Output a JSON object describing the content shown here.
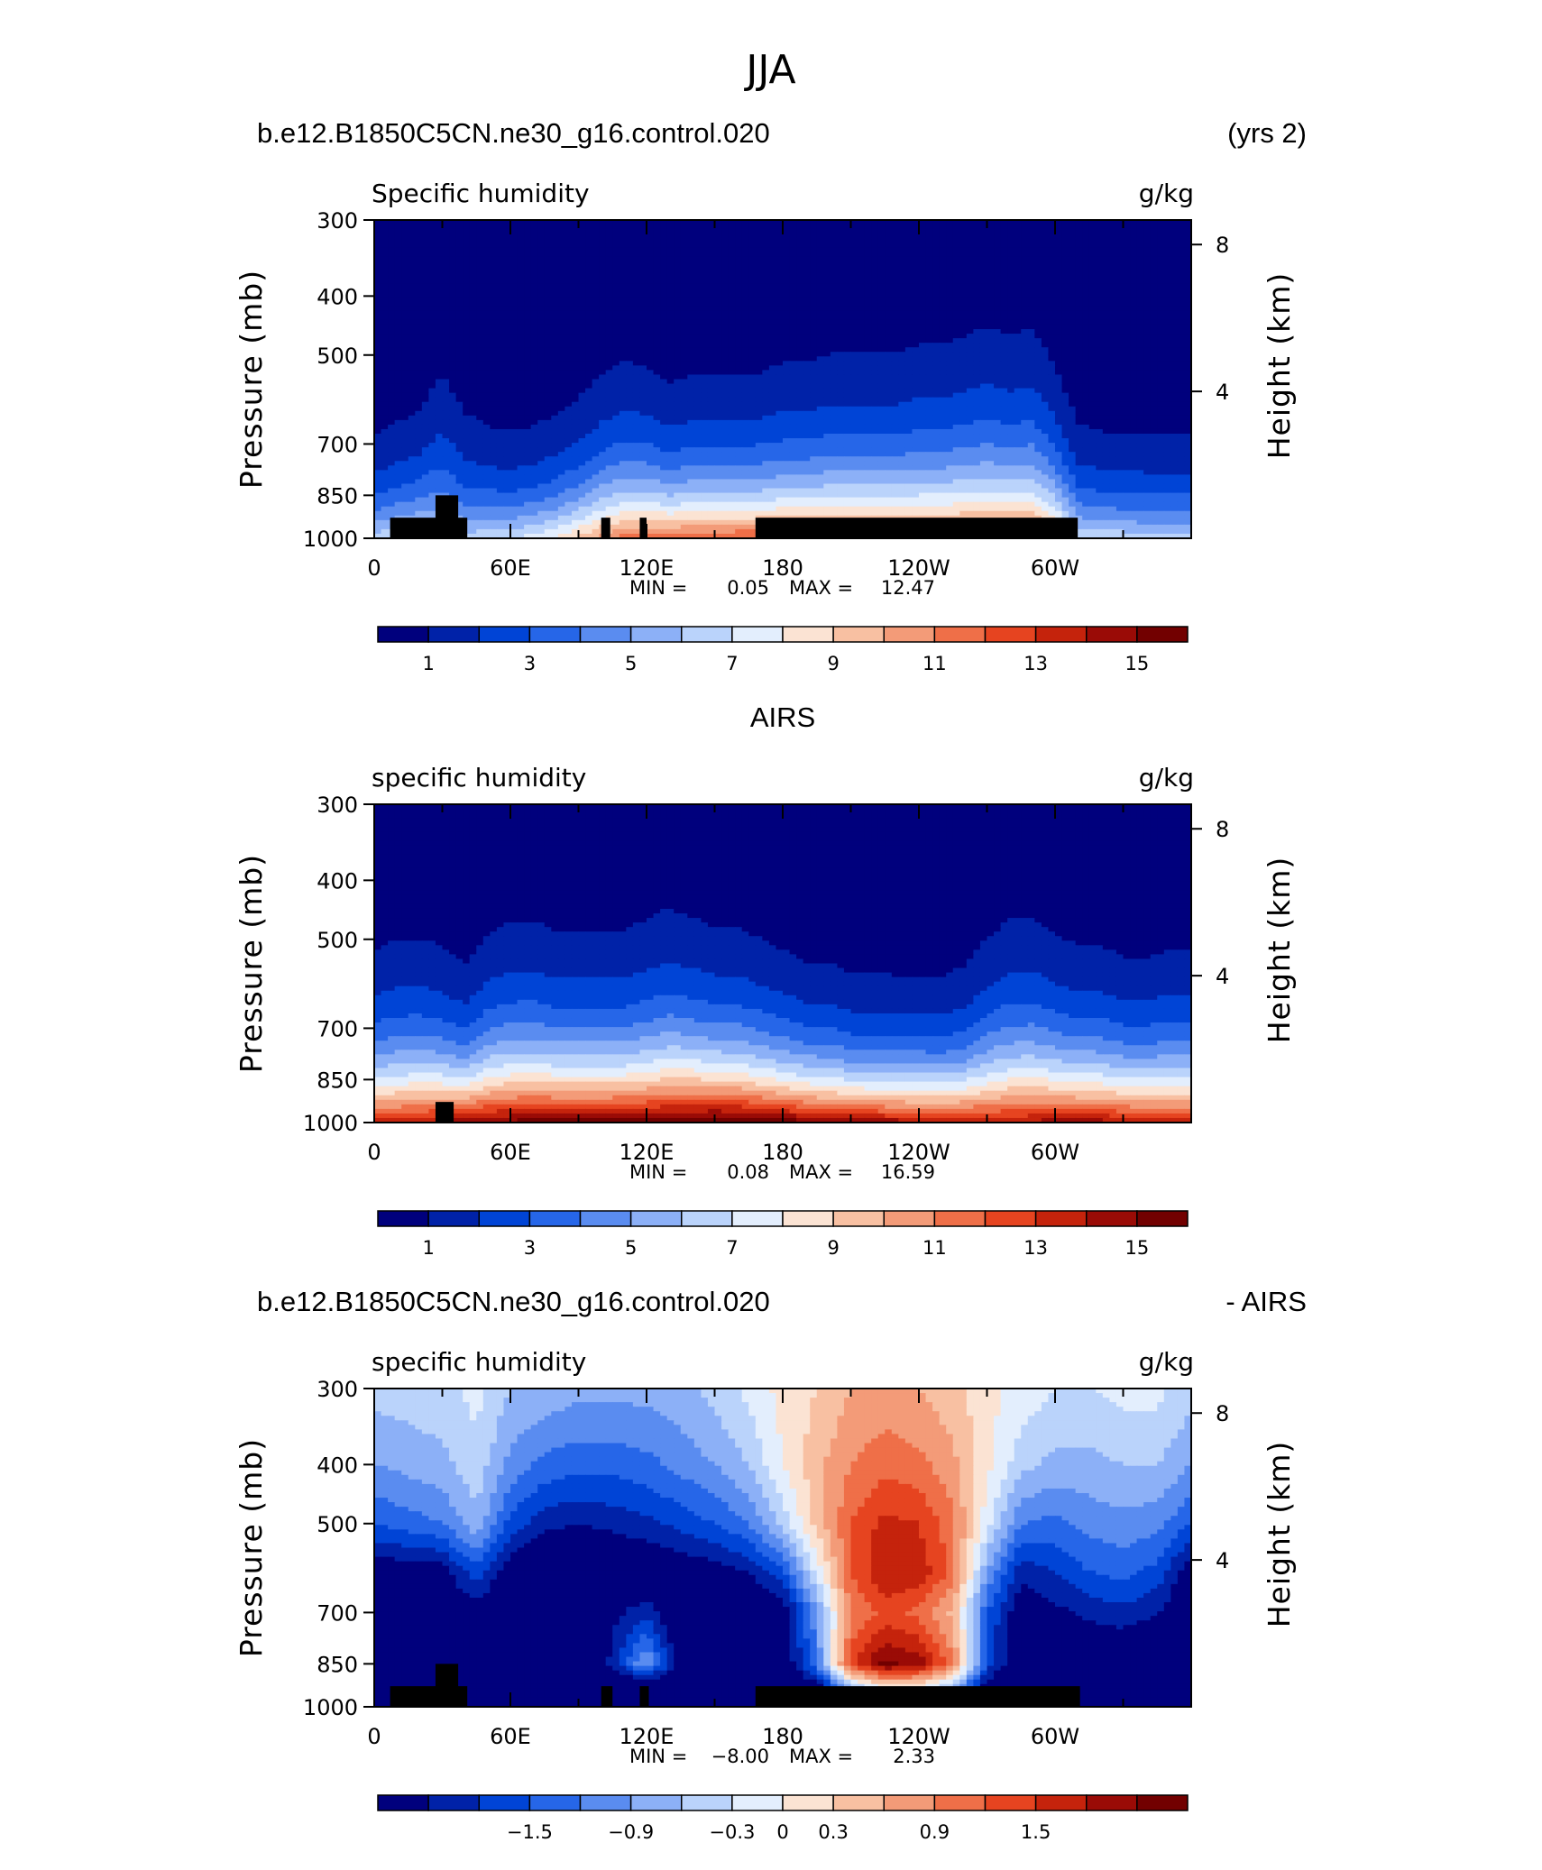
{
  "supertitle": "JJA",
  "colors": {
    "model_palette": [
      "#00007d",
      "#0022a8",
      "#0044d6",
      "#2666e8",
      "#5a8cf0",
      "#8cb0f7",
      "#bad3fb",
      "#e3eefd",
      "#fbe3d3",
      "#f8c0a2",
      "#f39b78",
      "#ef6f48",
      "#e64420",
      "#c5230c",
      "#9a0b06",
      "#720000"
    ],
    "diff_palette": [
      "#00007d",
      "#0022a8",
      "#0044d6",
      "#2666e8",
      "#5a8cf0",
      "#8cb0f7",
      "#bad3fb",
      "#e3eefd",
      "#fbe3d3",
      "#f8c0a2",
      "#f39b78",
      "#ef6f48",
      "#e64420",
      "#c5230c",
      "#9a0b06",
      "#720000"
    ],
    "topography": "#000000"
  },
  "panels": [
    {
      "left_title": "b.e12.B1850C5CN.ne30_g16.control.020",
      "right_title": "(yrs 2)",
      "center_title": "",
      "var_label": "Specific humidity",
      "units_label": "g/kg",
      "min_label": "MIN =",
      "min_value": "0.05",
      "max_label": "MAX =",
      "max_value": "12.47"
    },
    {
      "left_title": "",
      "right_title": "",
      "center_title": "AIRS",
      "var_label": "specific humidity",
      "units_label": "g/kg",
      "min_label": "MIN =",
      "min_value": "0.08",
      "max_label": "MAX =",
      "max_value": "16.59"
    },
    {
      "left_title": "b.e12.B1850C5CN.ne30_g16.control.020",
      "right_title": "- AIRS",
      "center_title": "",
      "var_label": "specific humidity",
      "units_label": "g/kg",
      "min_label": "MIN =",
      "min_value": "−8.00",
      "max_label": "MAX =",
      "max_value": "2.33"
    }
  ],
  "axes": {
    "ylabel_left": "Pressure (mb)",
    "ylabel_right": "Height (km)",
    "pressure_ticks": [
      "300",
      "400",
      "500",
      "700",
      "850",
      "1000"
    ],
    "height_ticks": [
      "8",
      "4"
    ],
    "lon_ticks": [
      "0",
      "60E",
      "120E",
      "180",
      "120W",
      "60W"
    ]
  },
  "colorbars": {
    "model_labels": [
      "1",
      "3",
      "5",
      "7",
      "9",
      "11",
      "13",
      "15"
    ],
    "diff_labels": [
      "−1.5",
      "−0.9",
      "−0.3",
      "0",
      "0.3",
      "0.9",
      "1.5"
    ]
  },
  "chart_data": [
    {
      "type": "heatmap",
      "title": "b.e12.B1850C5CN.ne30_g16.control.020",
      "xlabel": "",
      "ylabel": "Pressure (mb)",
      "x_ticks": [
        "0",
        "60E",
        "120E",
        "180",
        "120W",
        "60W"
      ],
      "xlim": [
        0,
        360
      ],
      "y_ticks": [
        300,
        400,
        500,
        700,
        850,
        1000
      ],
      "ylim": [
        1000,
        300
      ],
      "y_scale": "log",
      "levels": [
        0,
        1,
        2,
        3,
        4,
        5,
        6,
        7,
        8,
        9,
        10,
        11,
        12,
        13,
        14,
        15,
        16
      ],
      "lon": [
        0,
        10,
        20,
        30,
        40,
        50,
        60,
        70,
        80,
        90,
        100,
        110,
        120,
        130,
        140,
        150,
        160,
        170,
        180,
        190,
        200,
        210,
        220,
        230,
        240,
        250,
        260,
        270,
        280,
        290,
        300,
        310,
        320,
        330,
        340,
        350,
        360
      ],
      "surface_value": [
        6.6,
        7.2,
        7.6,
        7.0,
        6.6,
        6.8,
        7.0,
        7.6,
        8.3,
        9.4,
        10.6,
        11.4,
        11.7,
        11.9,
        12.0,
        12.1,
        12.2,
        12.3,
        12.3,
        12.3,
        12.3,
        12.3,
        12.3,
        12.3,
        12.3,
        12.3,
        12.3,
        12.3,
        12.3,
        12.1,
        10.6,
        7.2,
        7.0,
        6.8,
        6.6,
        6.6,
        6.6
      ],
      "scale_height": [
        1.5,
        1.6,
        1.7,
        2.3,
        1.8,
        1.6,
        1.5,
        1.5,
        1.6,
        1.7,
        1.9,
        2.0,
        1.9,
        1.7,
        1.8,
        1.8,
        1.8,
        1.8,
        1.9,
        1.9,
        2.0,
        2.0,
        2.0,
        2.0,
        2.1,
        2.1,
        2.2,
        2.3,
        2.2,
        2.3,
        2.0,
        1.6,
        1.5,
        1.5,
        1.5,
        1.5,
        1.5
      ],
      "min": 0.05,
      "max": 12.47
    },
    {
      "type": "heatmap",
      "title": "AIRS",
      "xlabel": "",
      "ylabel": "Pressure (mb)",
      "x_ticks": [
        "0",
        "60E",
        "120E",
        "180",
        "120W",
        "60W"
      ],
      "xlim": [
        0,
        360
      ],
      "y_ticks": [
        300,
        400,
        500,
        700,
        850,
        1000
      ],
      "ylim": [
        1000,
        300
      ],
      "y_scale": "log",
      "levels": [
        0,
        1,
        2,
        3,
        4,
        5,
        6,
        7,
        8,
        9,
        10,
        11,
        12,
        13,
        14,
        15,
        16
      ],
      "lon": [
        0,
        10,
        20,
        30,
        40,
        50,
        60,
        70,
        80,
        90,
        100,
        110,
        120,
        130,
        140,
        150,
        160,
        170,
        180,
        190,
        200,
        210,
        220,
        230,
        240,
        250,
        260,
        270,
        280,
        290,
        300,
        310,
        320,
        330,
        340,
        350,
        360
      ],
      "surface_value": [
        13.6,
        13.8,
        14.0,
        14.4,
        14.8,
        15.2,
        15.4,
        15.6,
        15.7,
        15.7,
        15.7,
        15.8,
        15.9,
        16.1,
        16.3,
        16.5,
        16.4,
        16.1,
        15.8,
        15.5,
        15.2,
        15.0,
        14.8,
        14.6,
        14.4,
        14.3,
        14.2,
        14.0,
        14.0,
        14.3,
        14.6,
        14.6,
        14.5,
        14.3,
        14.0,
        13.8,
        13.6
      ],
      "scale_height": [
        1.8,
        1.9,
        1.9,
        1.8,
        1.6,
        1.9,
        2.0,
        2.0,
        1.9,
        1.9,
        1.9,
        1.9,
        2.0,
        2.1,
        2.0,
        1.9,
        1.9,
        1.8,
        1.7,
        1.6,
        1.6,
        1.5,
        1.5,
        1.5,
        1.5,
        1.5,
        1.6,
        1.9,
        2.1,
        2.1,
        1.9,
        1.8,
        1.8,
        1.7,
        1.7,
        1.8,
        1.8
      ],
      "min": 0.08,
      "max": 16.59
    },
    {
      "type": "heatmap",
      "title": "b.e12.B1850C5CN.ne30_g16.control.020 - AIRS",
      "xlabel": "",
      "ylabel": "Pressure (mb)",
      "x_ticks": [
        "0",
        "60E",
        "120E",
        "180",
        "120W",
        "60W"
      ],
      "xlim": [
        0,
        360
      ],
      "y_ticks": [
        300,
        400,
        500,
        700,
        850,
        1000
      ],
      "ylim": [
        1000,
        300
      ],
      "y_scale": "log",
      "levels": [
        -2.4,
        -2.1,
        -1.8,
        -1.5,
        -1.2,
        -0.9,
        -0.6,
        -0.3,
        0,
        0.3,
        0.6,
        0.9,
        1.2,
        1.5,
        1.8,
        2.1,
        2.4
      ],
      "pressure": [
        300,
        400,
        500,
        600,
        700,
        850,
        925,
        1000
      ],
      "lon": [
        0,
        30,
        45,
        60,
        75,
        90,
        105,
        120,
        135,
        150,
        165,
        180,
        195,
        210,
        225,
        240,
        255,
        270,
        285,
        300,
        315,
        330,
        345,
        360
      ],
      "values": [
        [
          -0.5,
          -0.4,
          -0.2,
          -0.6,
          -0.7,
          -0.8,
          -0.8,
          -0.8,
          -0.7,
          -0.5,
          -0.2,
          0.1,
          0.3,
          0.6,
          0.7,
          0.6,
          0.4,
          0.1,
          -0.1,
          -0.3,
          -0.3,
          -0.2,
          -0.2,
          -0.5
        ],
        [
          -0.9,
          -0.7,
          -0.4,
          -1.0,
          -1.3,
          -1.4,
          -1.4,
          -1.3,
          -1.1,
          -0.9,
          -0.6,
          0.0,
          0.5,
          0.9,
          1.1,
          1.0,
          0.7,
          0.1,
          -0.5,
          -0.7,
          -0.7,
          -0.6,
          -0.6,
          -0.9
        ],
        [
          -1.5,
          -1.2,
          -0.7,
          -1.6,
          -2.0,
          -2.1,
          -2.0,
          -1.9,
          -1.7,
          -1.5,
          -1.2,
          -0.5,
          0.4,
          1.2,
          1.6,
          1.5,
          1.0,
          -0.2,
          -1.2,
          -1.3,
          -1.1,
          -1.0,
          -1.1,
          -1.5
        ],
        [
          -2.4,
          -2.3,
          -1.6,
          -2.4,
          -2.6,
          -2.7,
          -2.6,
          -2.5,
          -2.4,
          -2.3,
          -2.1,
          -1.6,
          -0.2,
          1.2,
          1.8,
          1.7,
          1.1,
          -0.9,
          -2.0,
          -1.8,
          -1.5,
          -1.4,
          -1.6,
          -2.4
        ],
        [
          -2.5,
          -2.4,
          -2.3,
          -2.6,
          -2.7,
          -2.8,
          -2.2,
          -1.9,
          -2.6,
          -2.7,
          -2.6,
          -2.4,
          -1.0,
          0.9,
          1.3,
          1.1,
          0.5,
          -1.5,
          -2.4,
          -2.2,
          -2.0,
          -1.9,
          -2.1,
          -2.5
        ],
        [
          -2.6,
          -2.5,
          -2.5,
          -2.7,
          -2.8,
          -2.8,
          -2.0,
          -0.8,
          -2.4,
          -2.7,
          -2.7,
          -2.5,
          -1.2,
          1.4,
          2.2,
          2.0,
          1.0,
          -1.6,
          -2.6,
          -2.6,
          -2.6,
          -2.6,
          -2.6,
          -2.6
        ],
        [
          -2.7,
          -2.7,
          -2.7,
          -2.8,
          -2.8,
          -2.8,
          -2.7,
          -2.6,
          -2.7,
          -2.8,
          -2.8,
          -2.8,
          -2.3,
          -0.6,
          0.2,
          0.1,
          -0.6,
          -2.3,
          -2.8,
          -2.8,
          -2.8,
          -2.8,
          -2.8,
          -2.7
        ],
        [
          -2.8,
          -2.8,
          -2.8,
          -2.8,
          -2.8,
          -2.8,
          -2.8,
          -2.8,
          -2.8,
          -2.8,
          -2.8,
          -2.8,
          -2.8,
          -2.8,
          -2.8,
          -2.8,
          -2.8,
          -2.8,
          -2.8,
          -2.8,
          -2.8,
          -2.8,
          -2.8,
          -2.8
        ]
      ],
      "min": -8.0,
      "max": 2.33
    }
  ]
}
